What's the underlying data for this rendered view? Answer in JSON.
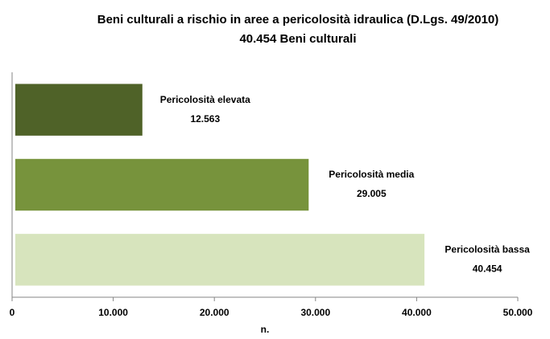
{
  "chart_data": {
    "type": "barh",
    "title": "Beni culturali a rischio in aree a pericolosità idraulica (D.Lgs. 49/2010)",
    "subtitle": "40.454 Beni culturali",
    "categories": [
      "Pericolosità elevata",
      "Pericolosità media",
      "Pericolosità bassa"
    ],
    "values": [
      12563,
      29005,
      40454
    ],
    "value_labels": [
      "12.563",
      "29.005",
      "40.454"
    ],
    "colors": [
      "#4f6228",
      "#77933c",
      "#d7e4bd"
    ],
    "xlabel": "n.",
    "xlim": [
      0,
      50000
    ],
    "xticks": [
      0,
      {
        "value": 10000,
        "label": "10.000"
      },
      {
        "value": 20000,
        "label": "20.000"
      },
      {
        "value": 30000,
        "label": "30.000"
      },
      {
        "value": 40000,
        "label": "40.000"
      },
      {
        "value": 50000,
        "label": "50.000"
      }
    ],
    "grid": false
  }
}
